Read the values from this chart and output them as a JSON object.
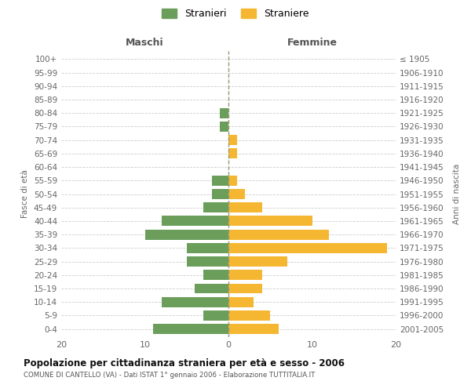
{
  "age_groups": [
    "0-4",
    "5-9",
    "10-14",
    "15-19",
    "20-24",
    "25-29",
    "30-34",
    "35-39",
    "40-44",
    "45-49",
    "50-54",
    "55-59",
    "60-64",
    "65-69",
    "70-74",
    "75-79",
    "80-84",
    "85-89",
    "90-94",
    "95-99",
    "100+"
  ],
  "birth_years": [
    "2001-2005",
    "1996-2000",
    "1991-1995",
    "1986-1990",
    "1981-1985",
    "1976-1980",
    "1971-1975",
    "1966-1970",
    "1961-1965",
    "1956-1960",
    "1951-1955",
    "1946-1950",
    "1941-1945",
    "1936-1940",
    "1931-1935",
    "1926-1930",
    "1921-1925",
    "1916-1920",
    "1911-1915",
    "1906-1910",
    "≤ 1905"
  ],
  "maschi": [
    9,
    3,
    8,
    4,
    3,
    5,
    5,
    10,
    8,
    3,
    2,
    2,
    0,
    0,
    0,
    1,
    1,
    0,
    0,
    0,
    0
  ],
  "femmine": [
    6,
    5,
    3,
    4,
    4,
    7,
    19,
    12,
    10,
    4,
    2,
    1,
    0,
    1,
    1,
    0,
    0,
    0,
    0,
    0,
    0
  ],
  "color_maschi": "#6a9e5a",
  "color_femmine": "#f5b731",
  "title": "Popolazione per cittadinanza straniera per età e sesso - 2006",
  "subtitle": "COMUNE DI CANTELLO (VA) - Dati ISTAT 1° gennaio 2006 - Elaborazione TUTTITALIA.IT",
  "label_maschi": "Maschi",
  "label_femmine": "Femmine",
  "ylabel_left": "Fasce di età",
  "ylabel_right": "Anni di nascita",
  "legend_maschi": "Stranieri",
  "legend_femmine": "Straniere",
  "xlim": 20,
  "background_color": "#ffffff",
  "grid_color": "#cccccc",
  "bar_height": 0.75
}
